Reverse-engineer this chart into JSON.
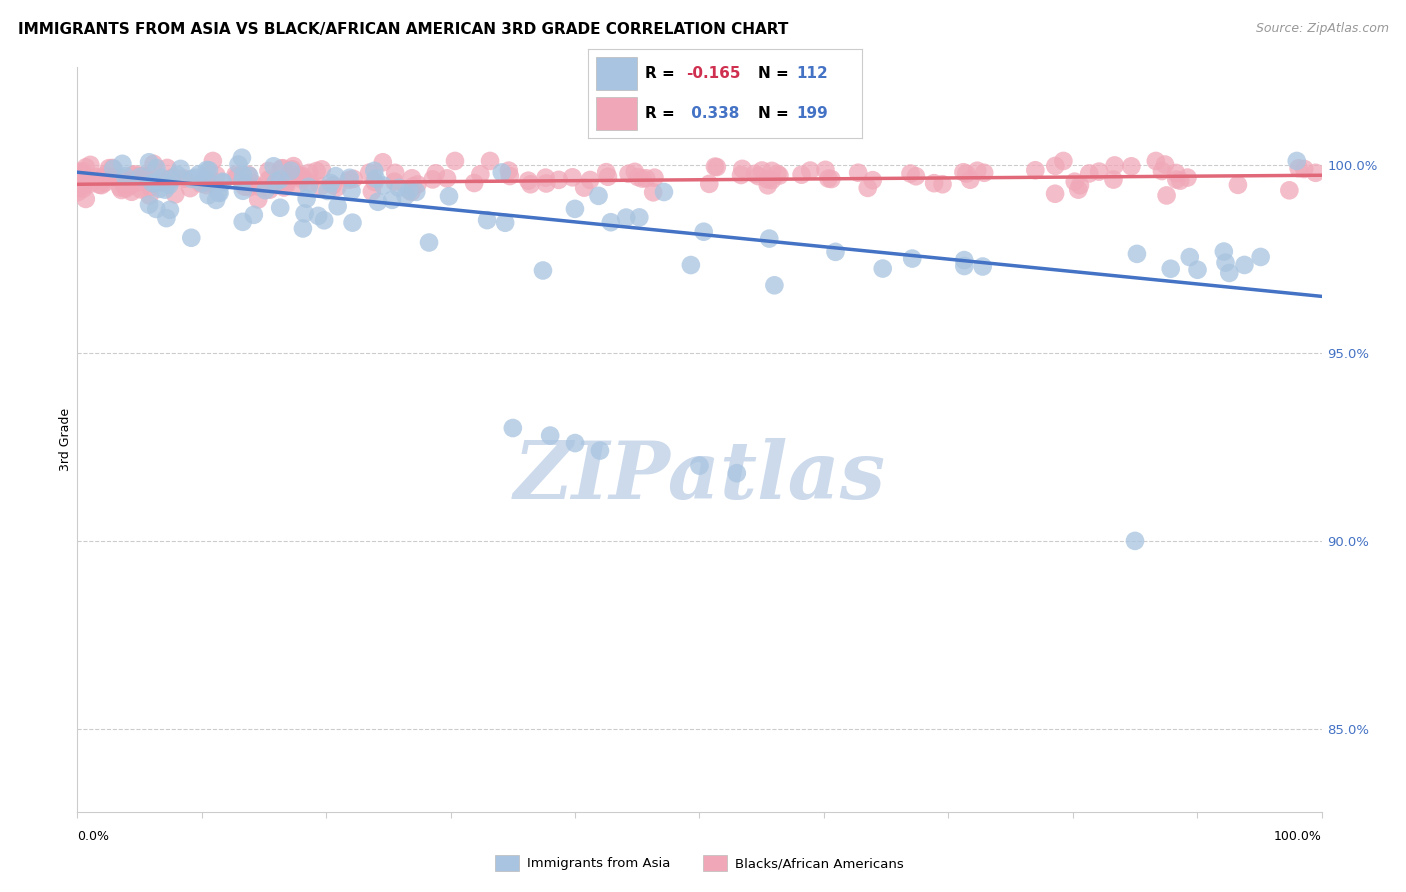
{
  "title": "IMMIGRANTS FROM ASIA VS BLACK/AFRICAN AMERICAN 3RD GRADE CORRELATION CHART",
  "source": "Source: ZipAtlas.com",
  "ylabel": "3rd Grade",
  "xmin": 0.0,
  "xmax": 1.0,
  "ymin": 0.828,
  "ymax": 1.026,
  "yticks": [
    0.85,
    0.9,
    0.95,
    1.0
  ],
  "ytick_labels": [
    "85.0%",
    "90.0%",
    "95.0%",
    "100.0%"
  ],
  "legend_blue_r": "R = -0.165",
  "legend_blue_n": "N =  112",
  "legend_pink_r": "R =  0.338",
  "legend_pink_n": "N =  199",
  "blue_color": "#a8c4e0",
  "pink_color": "#f0a8b8",
  "blue_line_color": "#4472c4",
  "pink_line_color": "#e06878",
  "blue_trend_x": [
    0.0,
    1.0
  ],
  "blue_trend_y": [
    0.998,
    0.965
  ],
  "pink_trend_x": [
    0.0,
    1.0
  ],
  "pink_trend_y": [
    0.9948,
    0.9972
  ],
  "watermark": "ZIPatlas",
  "watermark_color": "#ccdaec",
  "title_fontsize": 11,
  "source_fontsize": 9,
  "legend_r_color_blue": "#d03050",
  "legend_n_color": "#4472c4"
}
